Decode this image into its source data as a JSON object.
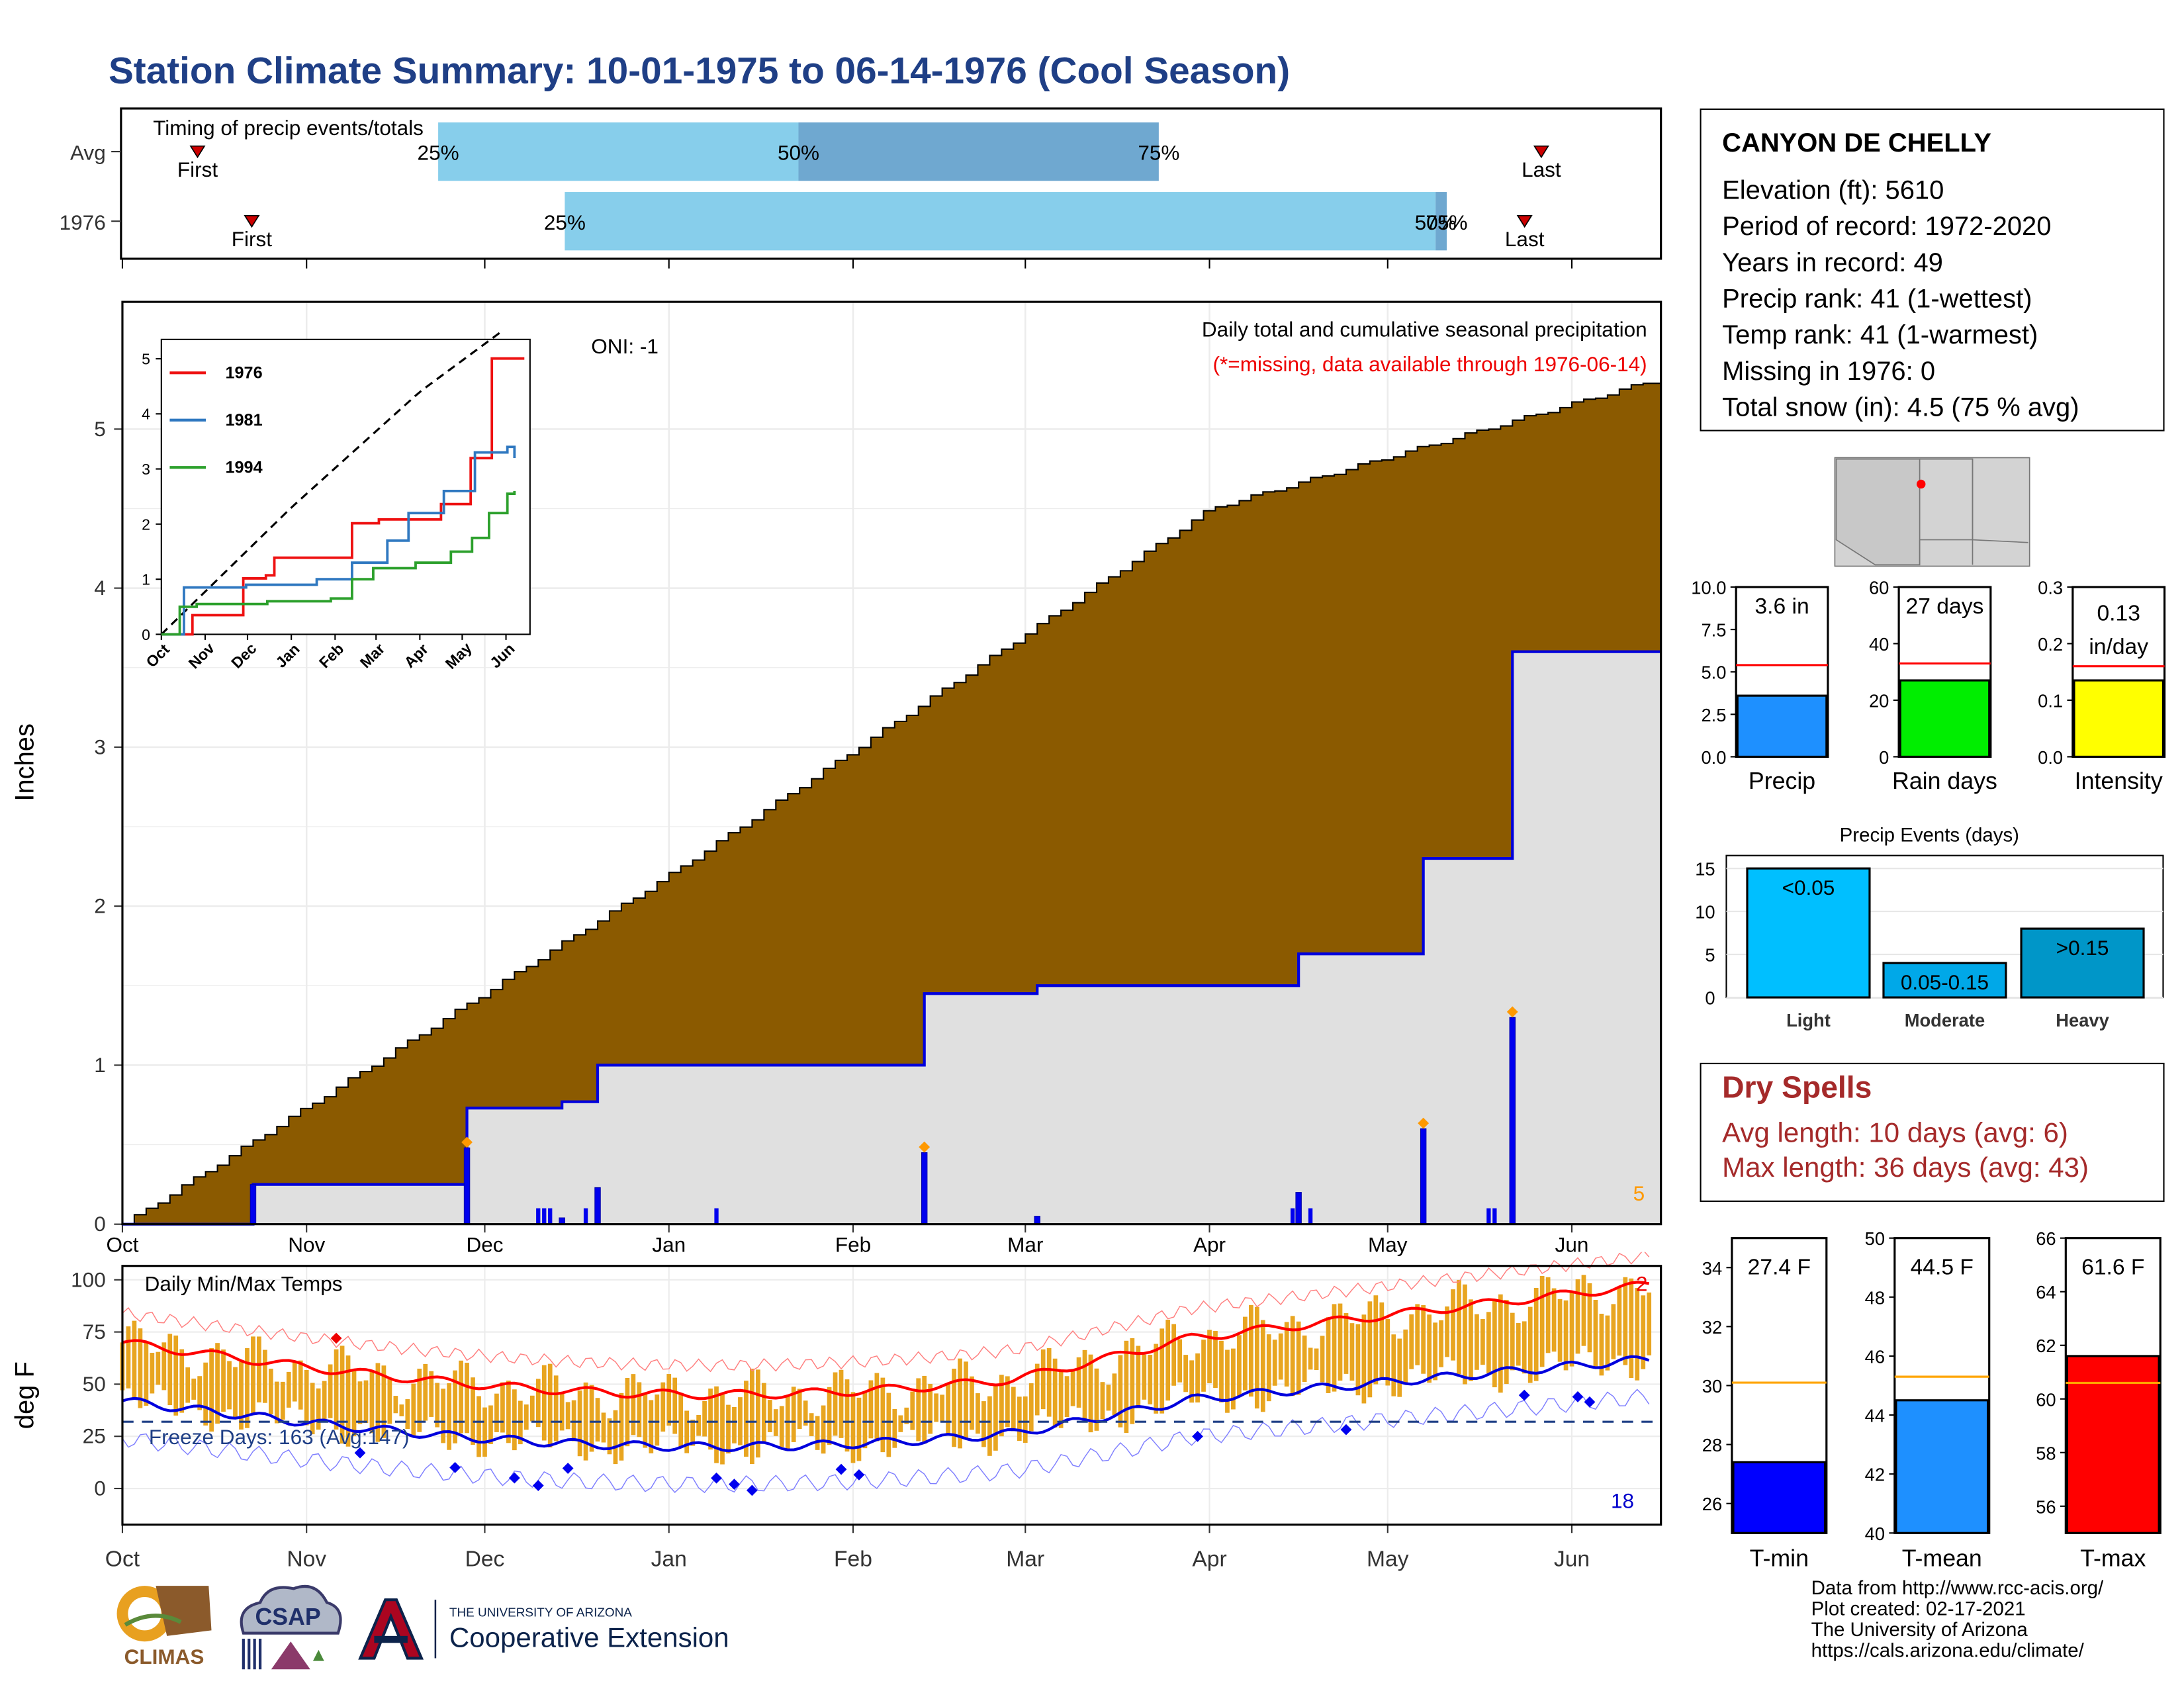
{
  "title": "Station Climate Summary: 10-01-1975 to 06-14-1976 (Cool Season)",
  "colors": {
    "title": "#1f3f86",
    "cum_fill": "#8b5a00",
    "accum_line": "#0000dd",
    "accum_fill": "#e0e0e0",
    "tmax": "#ff0000",
    "tmin": "#0000dd",
    "tbar": "#e8a520",
    "timing_light": "#87ceeb",
    "timing_dark": "#6fa8d0",
    "marker": "#cc0000"
  },
  "timing": {
    "title": "Timing of precip events/totals",
    "rows": [
      {
        "label": "Avg",
        "first": "First",
        "last": "Last",
        "p25": "25%",
        "p50": "50%",
        "p75": "75%"
      },
      {
        "label": "1976",
        "first": "First",
        "last": "Last",
        "p25": "25%",
        "p50": "50%",
        "p75": "75%"
      }
    ]
  },
  "station": {
    "name": "CANYON DE CHELLY",
    "lines": [
      "Elevation (ft): 5610",
      "Period of record: 1972-2020",
      "Years in record: 49",
      "Precip rank: 41 (1-wettest)",
      "Temp rank: 41 (1-warmest)",
      "Missing in 1976: 0",
      "Total snow (in): 4.5 (75 % avg)"
    ]
  },
  "precip_panel": {
    "ylabel": "Inches",
    "oni": "ONI: -1",
    "note1": "Daily total and cumulative seasonal precipitation",
    "note2": "(*=missing, data available through 1976-06-14)",
    "count_label": "5",
    "months": [
      "Oct",
      "Nov",
      "Dec",
      "Jan",
      "Feb",
      "Mar",
      "Apr",
      "May",
      "Jun"
    ],
    "yticks": [
      "0",
      "1",
      "2",
      "3",
      "4",
      "5"
    ]
  },
  "inset": {
    "months": [
      "Oct",
      "Nov",
      "Dec",
      "Jan",
      "Feb",
      "Mar",
      "Apr",
      "May",
      "Jun"
    ],
    "yticks": [
      "0",
      "1",
      "2",
      "3",
      "4",
      "5"
    ],
    "legend": [
      "1976",
      "1981",
      "1994"
    ]
  },
  "temp_panel": {
    "ylabel": "deg F",
    "title": "Daily Min/Max Temps",
    "freeze": "Freeze Days: 163 (Avg:147)",
    "top_count": "2",
    "bottom_count": "18",
    "yticks": [
      "0",
      "25",
      "50",
      "75",
      "100"
    ],
    "months": [
      "Oct",
      "Nov",
      "Dec",
      "Jan",
      "Feb",
      "Mar",
      "Apr",
      "May",
      "Jun"
    ]
  },
  "mini_bars": [
    {
      "name": "Precip",
      "value_label": "3.6 in",
      "value": 3.6,
      "avg": 5.4,
      "ymax": 10.0,
      "yticks": [
        "0.0",
        "2.5",
        "5.0",
        "7.5",
        "10.0"
      ],
      "color": "#1e90ff"
    },
    {
      "name": "Rain days",
      "value_label": "27 days",
      "value": 27,
      "avg": 33,
      "ymax": 60,
      "yticks": [
        "0",
        "20",
        "40",
        "60"
      ],
      "color": "#00ee00"
    },
    {
      "name": "Intensity",
      "value_label": "0.13",
      "value_label2": "in/day",
      "value": 0.135,
      "avg": 0.16,
      "ymax": 0.3,
      "yticks": [
        "0.0",
        "0.1",
        "0.2",
        "0.3"
      ],
      "color": "#ffff00"
    }
  ],
  "events": {
    "title": "Precip Events (days)",
    "categories": [
      "Light",
      "Moderate",
      "Heavy"
    ],
    "labels": [
      "<0.05",
      "0.05-0.15",
      ">0.15"
    ],
    "values": [
      15,
      4,
      8
    ],
    "yticks": [
      "0",
      "5",
      "10",
      "15"
    ],
    "colors": [
      "#00bfff",
      "#00a8e8",
      "#0096c8"
    ]
  },
  "dry_spells": {
    "title": "Dry Spells",
    "avg": "Avg length: 10 days (avg: 6)",
    "max": "Max length: 36 days (avg: 43)"
  },
  "temp_bars": [
    {
      "name": "T-min",
      "value_label": "27.4 F",
      "value": 27.4,
      "avg": 30.1,
      "ymin": 25,
      "ymax": 35,
      "yticks": [
        "26",
        "28",
        "30",
        "32",
        "34"
      ],
      "ytickvals": [
        26,
        28,
        30,
        32,
        34
      ],
      "color": "#0000ff"
    },
    {
      "name": "T-mean",
      "value_label": "44.5 F",
      "value": 44.5,
      "avg": 45.3,
      "ymin": 40,
      "ymax": 50,
      "yticks": [
        "40",
        "42",
        "44",
        "46",
        "48",
        "50"
      ],
      "ytickvals": [
        40,
        42,
        44,
        46,
        48,
        50
      ],
      "color": "#1e90ff"
    },
    {
      "name": "T-max",
      "value_label": "61.6 F",
      "value": 61.6,
      "avg": 60.6,
      "ymin": 55,
      "ymax": 66,
      "yticks": [
        "56",
        "58",
        "60",
        "62",
        "64",
        "66"
      ],
      "ytickvals": [
        56,
        58,
        60,
        62,
        64,
        66
      ],
      "color": "#ff0000"
    }
  ],
  "credits": [
    "Data from http://www.rcc-acis.org/",
    "Plot created: 02-17-2021",
    "The University of Arizona",
    "https://cals.arizona.edu/climate/"
  ],
  "logos": {
    "climas": "CLIMAS",
    "csap": "CSAP",
    "ua_small": "THE UNIVERSITY OF ARIZONA",
    "ua_big": "Cooperative Extension"
  },
  "chart_data": {
    "type": "area",
    "x_start": "1975-10-01",
    "x_end": "1976-06-14",
    "ylabel": "Inches",
    "ylim": [
      0,
      5.8
    ],
    "series": [
      {
        "name": "1976",
        "x": [
          "1975-10-01",
          "1975-10-23",
          "1975-11-27",
          "1975-11-28",
          "1975-12-14",
          "1975-12-20",
          "1976-02-06",
          "1976-02-13",
          "1976-03-03",
          "1976-04-13",
          "1976-04-16",
          "1976-05-04",
          "1976-05-07",
          "1976-05-20",
          "1976-05-22",
          "1976-06-14"
        ],
        "values": [
          0,
          0.25,
          0.25,
          0.73,
          0.77,
          1.0,
          1.0,
          1.45,
          1.5,
          1.5,
          1.7,
          1.7,
          2.3,
          2.3,
          3.6,
          3.6
        ]
      }
    ],
    "average_cumulative": {
      "x": [
        "1975-10-01",
        "1976-01-01",
        "1976-04-01",
        "1976-06-14"
      ],
      "values": [
        0,
        2.2,
        4.5,
        5.3
      ]
    }
  }
}
